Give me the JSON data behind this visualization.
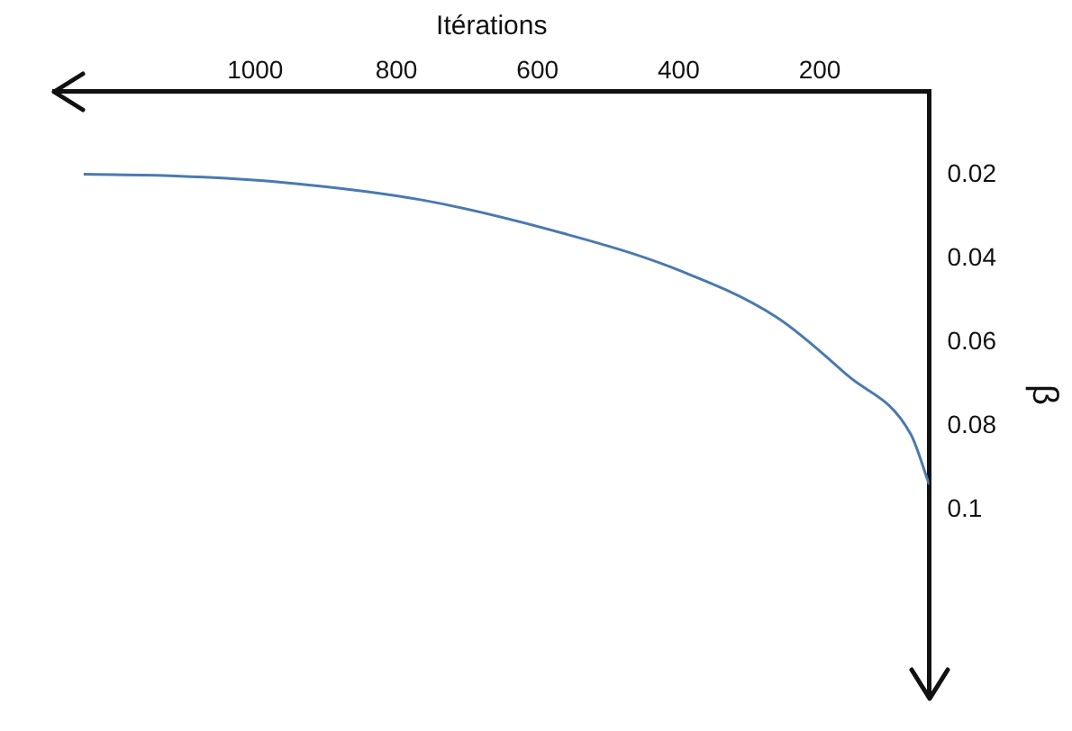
{
  "chart_data": {
    "type": "line",
    "xlabel": "Itérations",
    "ylabel": "β",
    "x": [
      45,
      71,
      160,
      261,
      411,
      562,
      762,
      963,
      1113,
      1243
    ],
    "series": [
      {
        "color": "#4a7ab0",
        "values": [
          0.094,
          0.082,
          0.068,
          0.054,
          0.042,
          0.034,
          0.026,
          0.0217,
          0.0202,
          0.0198
        ]
      }
    ],
    "xlim": [
      1285,
      45
    ],
    "xticks": [
      200,
      400,
      600,
      800,
      1000
    ],
    "ylim": [
      0.145,
      0
    ],
    "yticks": [
      0.02,
      0.04,
      0.06,
      0.08,
      0.1
    ],
    "grid": false,
    "legend": false
  }
}
